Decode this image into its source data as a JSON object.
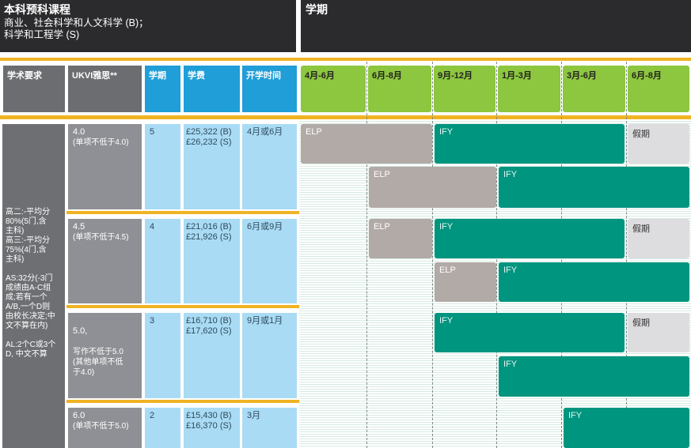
{
  "header": {
    "course_title": "本科预科课程",
    "course_line2": "商业、社会科学和人文科学 (B)；",
    "course_line3": "科学和工程学 (S)",
    "term_title": "学期"
  },
  "columns": [
    "学术要求",
    "UKVI雅思**",
    "学期",
    "学费",
    "开学时间",
    "4月-6月",
    "6月-8月",
    "9月-12月",
    "1月-3月",
    "3月-6月",
    "6月-8月"
  ],
  "academic_requirements": "高二:-平均分\n80%(5门,含\n主科)\n高三:-平均分\n75%(4门,含\n主科)\n\nAS:32分(-3门\n成绩由A-C组\n成;若有一个\nA/B,一个D则\n由校长决定;中\n文不算在内)\n\nAL:2个C或3个\nD, 中文不算",
  "rows": [
    {
      "ielts": "4.0",
      "ielts_note": "(单项不低于4.0)",
      "terms": "5",
      "fee_b": "£25,322 (B)",
      "fee_s": "£26,232 (S)",
      "start": "4月或6月"
    },
    {
      "ielts": "4.5",
      "ielts_note": "(单项不低于4.5)",
      "terms": "4",
      "fee_b": "£21,016 (B)",
      "fee_s": "£21,926 (S)",
      "start": "6月或9月"
    },
    {
      "ielts": "5.0,",
      "ielts_note": "写作不低于5.0\n(其他单项不低\n于4.0)",
      "terms": "3",
      "fee_b": "£16,710 (B)",
      "fee_s": "£17,620 (S)",
      "start": "9月或1月"
    },
    {
      "ielts": "6.0",
      "ielts_note": "(单项不低于5.0)",
      "terms": "2",
      "fee_b": "£15,430 (B)",
      "fee_s": "£16,370 (S)",
      "start": "3月"
    }
  ],
  "bars": {
    "elp": "ELP",
    "ify": "IFY",
    "holiday": "假期"
  },
  "colors": {
    "teal": "#00957f",
    "taupe": "#b1aaa6",
    "green": "#8dc63f",
    "blue": "#1f9ed8",
    "gold": "#f0b323",
    "dark": "#2b2b2d"
  }
}
